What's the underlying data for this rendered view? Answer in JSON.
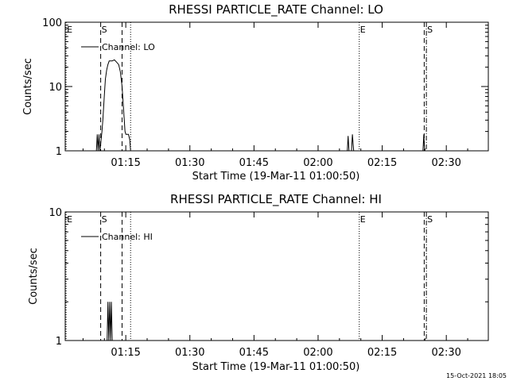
{
  "chart_data": [
    {
      "type": "line",
      "title": "RHESSI PARTICLE_RATE Channel: LO",
      "xlabel": "Start Time (19-Mar-11 01:00:50)",
      "ylabel": "Counts/sec",
      "yscale": "log",
      "ylim": [
        1,
        100
      ],
      "xlim_minutes": [
        0,
        99
      ],
      "x_ticks": [
        {
          "label": "01:15",
          "min": 14.17
        },
        {
          "label": "01:30",
          "min": 29.17
        },
        {
          "label": "01:45",
          "min": 44.17
        },
        {
          "label": "02:00",
          "min": 59.17
        },
        {
          "label": "02:15",
          "min": 74.17
        },
        {
          "label": "02:30",
          "min": 89.17
        }
      ],
      "y_ticks": [
        {
          "label": "1",
          "v": 1
        },
        {
          "label": "10",
          "v": 10
        },
        {
          "label": "100",
          "v": 100
        }
      ],
      "legend": {
        "label": "Channel: LO",
        "position": "top-left"
      },
      "markers": [
        {
          "label": "E",
          "min": 0.2,
          "style": "dotted"
        },
        {
          "label": "S",
          "min": 8.3,
          "style": "dashed"
        },
        {
          "label": "",
          "min": 13.3,
          "style": "dashed"
        },
        {
          "label": "",
          "min": 15.3,
          "style": "dotted"
        },
        {
          "label": "E",
          "min": 68.8,
          "style": "dotted"
        },
        {
          "label": "S",
          "min": 84.5,
          "style": "dashdot"
        },
        {
          "label": "",
          "min": 84.0,
          "style": "dashed"
        }
      ],
      "series": [
        {
          "name": "Channel: LO",
          "x_min": [
            7.3,
            7.5,
            7.7,
            7.9,
            8.1,
            8.3,
            8.6,
            8.8,
            9.0,
            9.2,
            9.4,
            9.7,
            10.0,
            10.3,
            10.6,
            11.0,
            11.5,
            12.0,
            12.5,
            12.9,
            13.3,
            13.7,
            14.0,
            14.2,
            14.5,
            14.8,
            15.1,
            15.3
          ],
          "values": [
            1,
            1.8,
            1,
            1.8,
            1,
            1.3,
            2,
            3,
            5,
            8,
            13,
            18,
            22,
            25,
            25,
            25,
            26,
            24,
            22,
            17,
            10,
            4,
            2,
            1.8,
            1.8,
            1.8,
            1.5,
            1
          ]
        },
        {
          "name": "",
          "x_min": [
            66.0,
            66.2,
            66.4,
            66.7,
            67.0,
            67.2,
            67.5,
            67.7
          ],
          "values": [
            1,
            1.7,
            1,
            1,
            1,
            1.8,
            1,
            1
          ]
        },
        {
          "name": "",
          "x_min": [
            83.7,
            83.9,
            84.1
          ],
          "values": [
            1,
            1.8,
            1
          ]
        }
      ]
    },
    {
      "type": "line",
      "title": "RHESSI PARTICLE_RATE Channel: HI",
      "xlabel": "Start Time (19-Mar-11 01:00:50)",
      "ylabel": "Counts/sec",
      "yscale": "log",
      "ylim": [
        1,
        10
      ],
      "xlim_minutes": [
        0,
        99
      ],
      "x_ticks": [
        {
          "label": "01:15",
          "min": 14.17
        },
        {
          "label": "01:30",
          "min": 29.17
        },
        {
          "label": "01:45",
          "min": 44.17
        },
        {
          "label": "02:00",
          "min": 59.17
        },
        {
          "label": "02:15",
          "min": 74.17
        },
        {
          "label": "02:30",
          "min": 89.17
        }
      ],
      "y_ticks": [
        {
          "label": "1",
          "v": 1
        },
        {
          "label": "10",
          "v": 10
        }
      ],
      "legend": {
        "label": "Channel: HI",
        "position": "top-left"
      },
      "markers": [
        {
          "label": "E",
          "min": 0.2,
          "style": "dotted"
        },
        {
          "label": "S",
          "min": 8.3,
          "style": "dashed"
        },
        {
          "label": "",
          "min": 13.3,
          "style": "dashed"
        },
        {
          "label": "",
          "min": 15.3,
          "style": "dotted"
        },
        {
          "label": "E",
          "min": 68.8,
          "style": "dotted"
        },
        {
          "label": "S",
          "min": 84.5,
          "style": "dashdot"
        },
        {
          "label": "",
          "min": 84.0,
          "style": "dashed"
        }
      ],
      "series": [
        {
          "name": "Channel: HI",
          "x_min": [
            9.8,
            10.0,
            10.2,
            10.4,
            10.6,
            10.8,
            11.0,
            11.2
          ],
          "values": [
            1,
            2,
            1,
            2,
            1,
            2,
            1,
            1
          ]
        }
      ]
    }
  ],
  "footer": {
    "timestamp": "15-Oct-2021 18:05"
  }
}
